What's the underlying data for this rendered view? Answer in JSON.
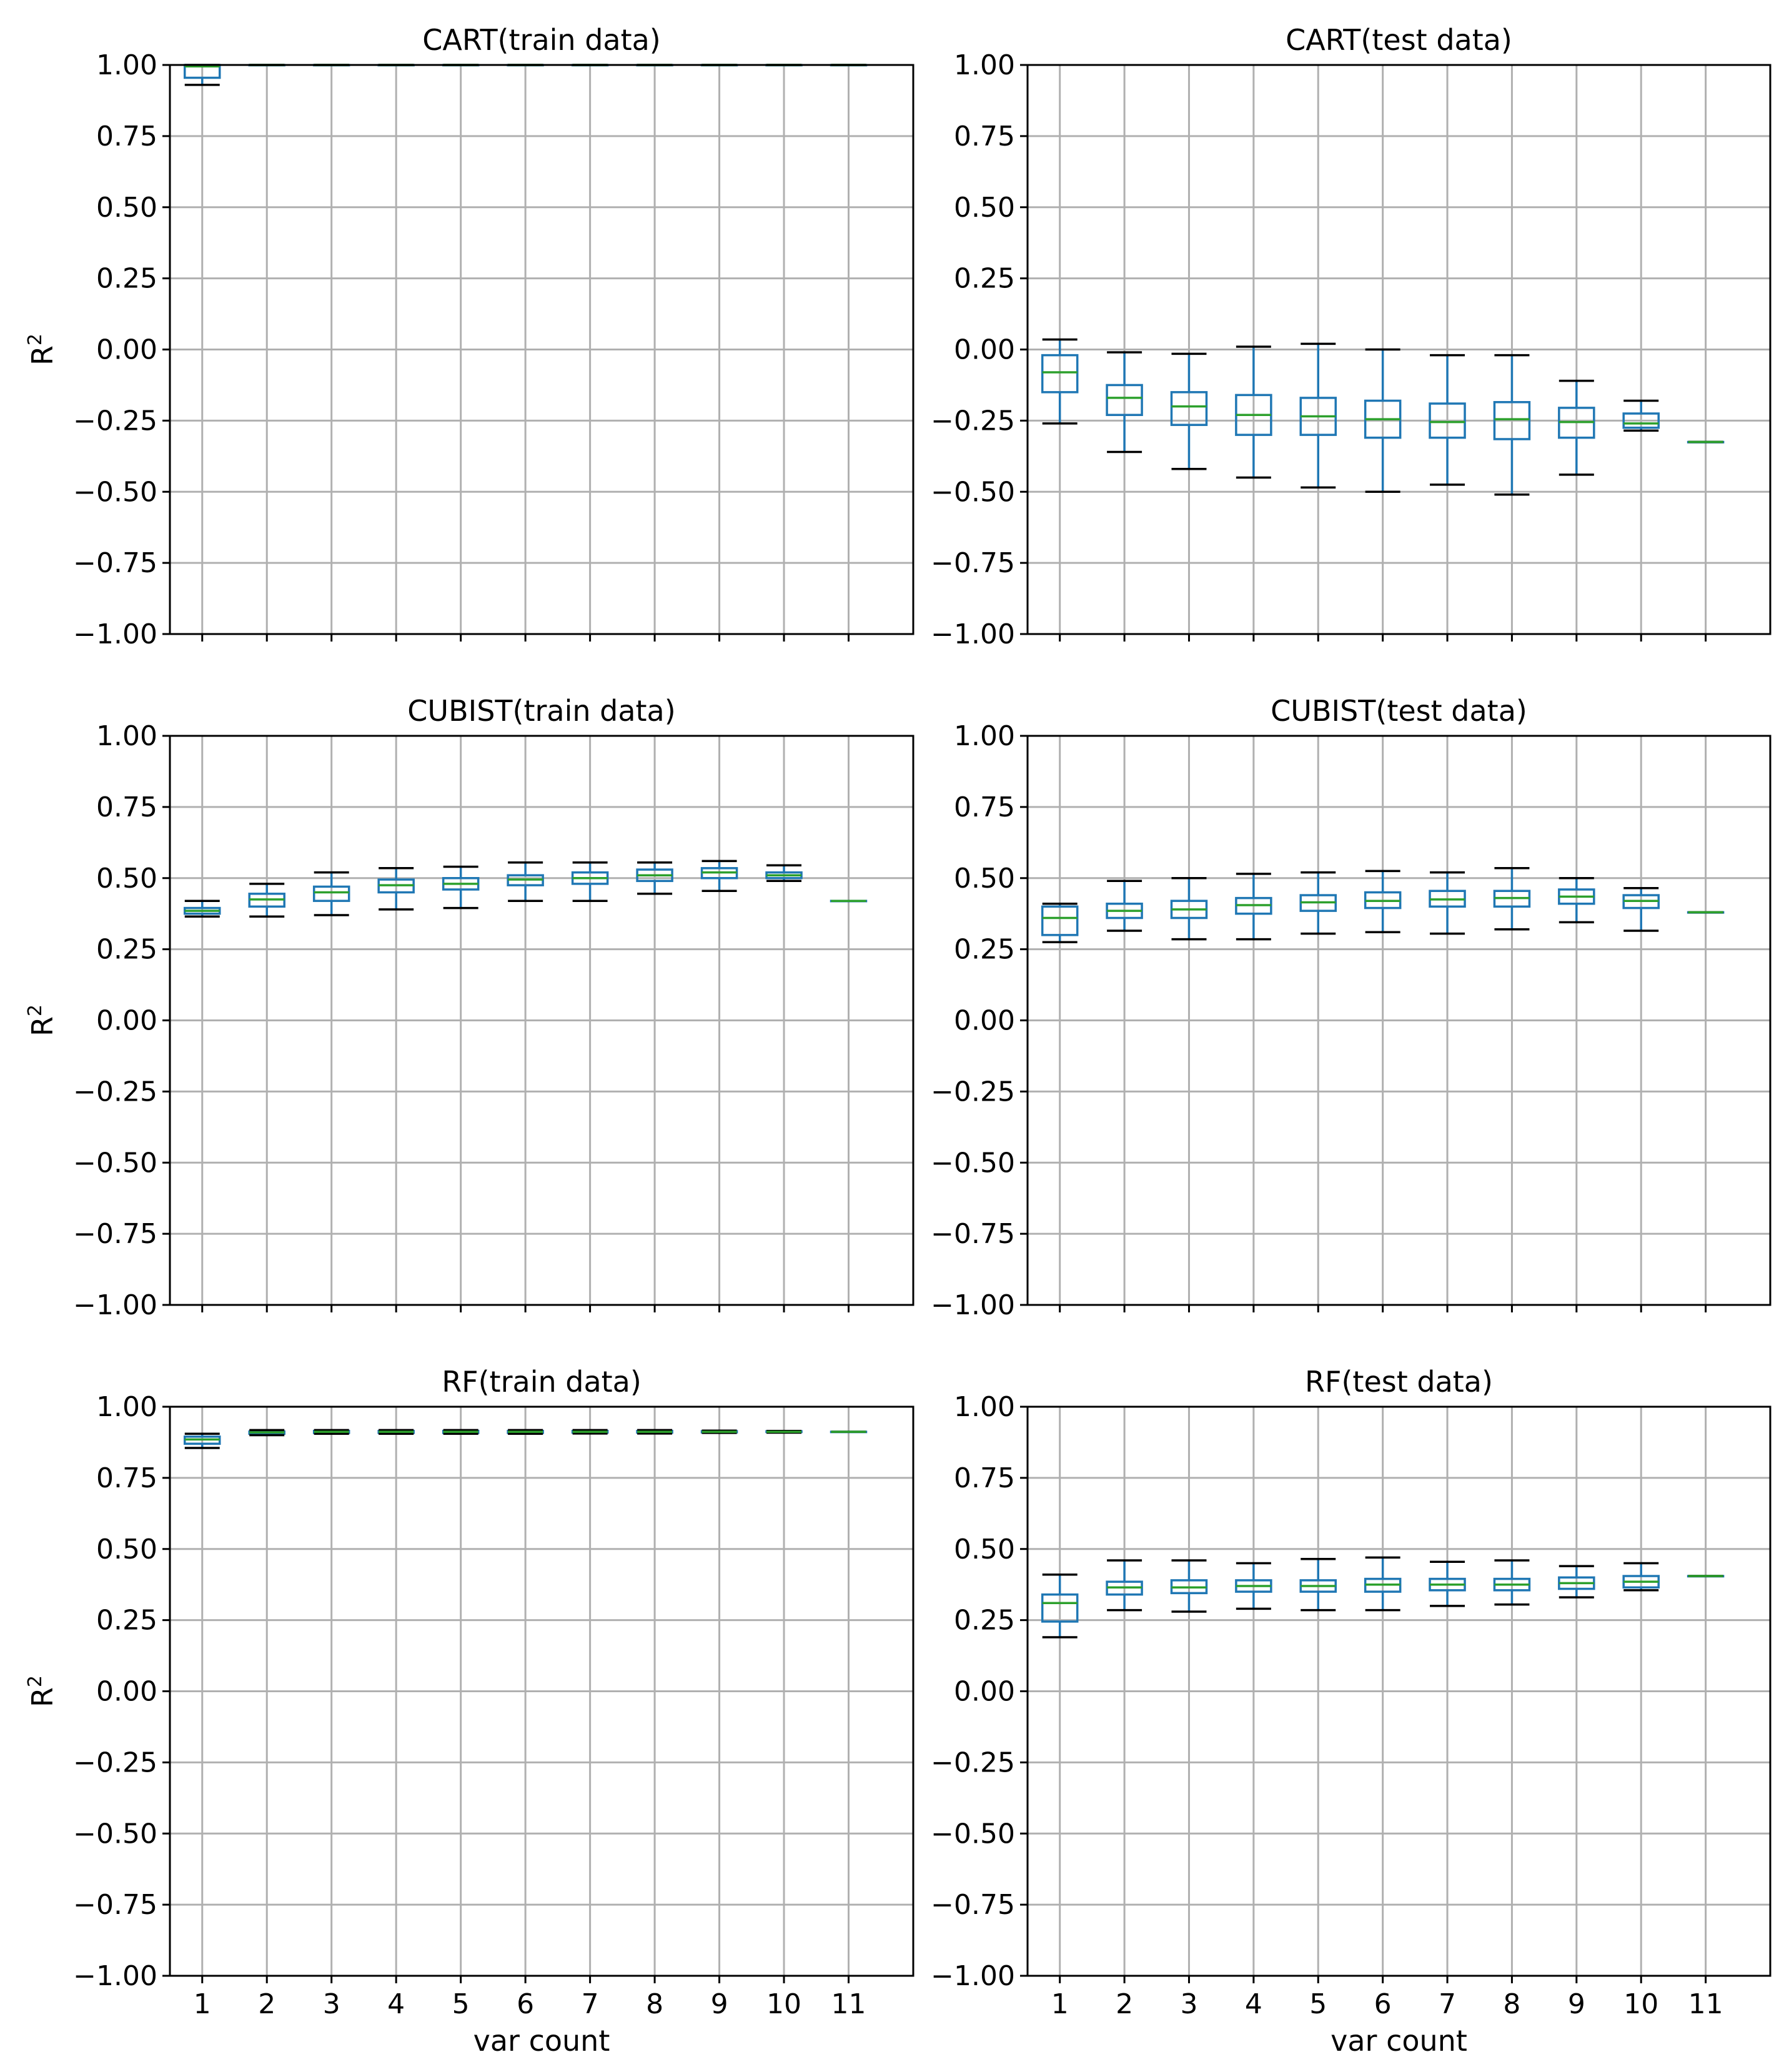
{
  "colors": {
    "box": "#1f77b4",
    "median": "#2ca02c",
    "cap": "#000000",
    "grid": "#b0b0b0"
  },
  "chart_data": [
    {
      "type": "box",
      "title": "CART(train data)",
      "xlabel": "",
      "ylabel": "R",
      "ylabel_sup": "2",
      "ylim": [
        -1.0,
        1.0
      ],
      "yticks": [
        1.0,
        0.75,
        0.5,
        0.25,
        0.0,
        -0.25,
        -0.5,
        -0.75,
        -1.0
      ],
      "ytick_labels": [
        "1.00",
        "0.75",
        "0.50",
        "0.25",
        "0.00",
        "−0.25",
        "−0.50",
        "−0.75",
        "−1.00"
      ],
      "categories": [
        "1",
        "2",
        "3",
        "4",
        "5",
        "6",
        "7",
        "8",
        "9",
        "10",
        "11"
      ],
      "show_xtick_labels": false,
      "boxes": [
        {
          "x": "1",
          "wlo": 0.93,
          "q1": 0.955,
          "med": 0.995,
          "q3": 1.0,
          "whi": 1.0
        },
        {
          "x": "2",
          "wlo": 1.0,
          "q1": 1.0,
          "med": 1.0,
          "q3": 1.0,
          "whi": 1.0
        },
        {
          "x": "3",
          "wlo": 1.0,
          "q1": 1.0,
          "med": 1.0,
          "q3": 1.0,
          "whi": 1.0
        },
        {
          "x": "4",
          "wlo": 1.0,
          "q1": 1.0,
          "med": 1.0,
          "q3": 1.0,
          "whi": 1.0
        },
        {
          "x": "5",
          "wlo": 1.0,
          "q1": 1.0,
          "med": 1.0,
          "q3": 1.0,
          "whi": 1.0
        },
        {
          "x": "6",
          "wlo": 1.0,
          "q1": 1.0,
          "med": 1.0,
          "q3": 1.0,
          "whi": 1.0
        },
        {
          "x": "7",
          "wlo": 1.0,
          "q1": 1.0,
          "med": 1.0,
          "q3": 1.0,
          "whi": 1.0
        },
        {
          "x": "8",
          "wlo": 1.0,
          "q1": 1.0,
          "med": 1.0,
          "q3": 1.0,
          "whi": 1.0
        },
        {
          "x": "9",
          "wlo": 1.0,
          "q1": 1.0,
          "med": 1.0,
          "q3": 1.0,
          "whi": 1.0
        },
        {
          "x": "10",
          "wlo": 1.0,
          "q1": 1.0,
          "med": 1.0,
          "q3": 1.0,
          "whi": 1.0
        },
        {
          "x": "11",
          "wlo": 1.0,
          "q1": 1.0,
          "med": 1.0,
          "q3": 1.0,
          "whi": 1.0
        }
      ]
    },
    {
      "type": "box",
      "title": "CART(test data)",
      "xlabel": "",
      "ylabel": "",
      "ylabel_sup": "",
      "ylim": [
        -1.0,
        1.0
      ],
      "yticks": [
        1.0,
        0.75,
        0.5,
        0.25,
        0.0,
        -0.25,
        -0.5,
        -0.75,
        -1.0
      ],
      "ytick_labels": [
        "1.00",
        "0.75",
        "0.50",
        "0.25",
        "0.00",
        "−0.25",
        "−0.50",
        "−0.75",
        "−1.00"
      ],
      "categories": [
        "1",
        "2",
        "3",
        "4",
        "5",
        "6",
        "7",
        "8",
        "9",
        "10",
        "11"
      ],
      "show_xtick_labels": false,
      "boxes": [
        {
          "x": "1",
          "wlo": -0.26,
          "q1": -0.15,
          "med": -0.08,
          "q3": -0.02,
          "whi": 0.035
        },
        {
          "x": "2",
          "wlo": -0.36,
          "q1": -0.23,
          "med": -0.17,
          "q3": -0.125,
          "whi": -0.01
        },
        {
          "x": "3",
          "wlo": -0.42,
          "q1": -0.265,
          "med": -0.2,
          "q3": -0.15,
          "whi": -0.015
        },
        {
          "x": "4",
          "wlo": -0.45,
          "q1": -0.3,
          "med": -0.23,
          "q3": -0.16,
          "whi": 0.01
        },
        {
          "x": "5",
          "wlo": -0.485,
          "q1": -0.3,
          "med": -0.235,
          "q3": -0.17,
          "whi": 0.02
        },
        {
          "x": "6",
          "wlo": -0.5,
          "q1": -0.31,
          "med": -0.245,
          "q3": -0.18,
          "whi": 0.0
        },
        {
          "x": "7",
          "wlo": -0.475,
          "q1": -0.31,
          "med": -0.255,
          "q3": -0.19,
          "whi": -0.02
        },
        {
          "x": "8",
          "wlo": -0.51,
          "q1": -0.315,
          "med": -0.245,
          "q3": -0.185,
          "whi": -0.02
        },
        {
          "x": "9",
          "wlo": -0.44,
          "q1": -0.31,
          "med": -0.255,
          "q3": -0.205,
          "whi": -0.11
        },
        {
          "x": "10",
          "wlo": -0.285,
          "q1": -0.275,
          "med": -0.26,
          "q3": -0.225,
          "whi": -0.18
        },
        {
          "x": "11",
          "wlo": -0.325,
          "q1": -0.325,
          "med": -0.325,
          "q3": -0.325,
          "whi": -0.325
        }
      ]
    },
    {
      "type": "box",
      "title": "CUBIST(train data)",
      "xlabel": "",
      "ylabel": "R",
      "ylabel_sup": "2",
      "ylim": [
        -1.0,
        1.0
      ],
      "yticks": [
        1.0,
        0.75,
        0.5,
        0.25,
        0.0,
        -0.25,
        -0.5,
        -0.75,
        -1.0
      ],
      "ytick_labels": [
        "1.00",
        "0.75",
        "0.50",
        "0.25",
        "0.00",
        "−0.25",
        "−0.50",
        "−0.75",
        "−1.00"
      ],
      "categories": [
        "1",
        "2",
        "3",
        "4",
        "5",
        "6",
        "7",
        "8",
        "9",
        "10",
        "11"
      ],
      "show_xtick_labels": false,
      "boxes": [
        {
          "x": "1",
          "wlo": 0.365,
          "q1": 0.375,
          "med": 0.385,
          "q3": 0.395,
          "whi": 0.42
        },
        {
          "x": "2",
          "wlo": 0.365,
          "q1": 0.4,
          "med": 0.425,
          "q3": 0.445,
          "whi": 0.48
        },
        {
          "x": "3",
          "wlo": 0.37,
          "q1": 0.42,
          "med": 0.45,
          "q3": 0.47,
          "whi": 0.52
        },
        {
          "x": "4",
          "wlo": 0.39,
          "q1": 0.45,
          "med": 0.475,
          "q3": 0.495,
          "whi": 0.535
        },
        {
          "x": "5",
          "wlo": 0.395,
          "q1": 0.46,
          "med": 0.48,
          "q3": 0.5,
          "whi": 0.54
        },
        {
          "x": "6",
          "wlo": 0.42,
          "q1": 0.475,
          "med": 0.495,
          "q3": 0.51,
          "whi": 0.555
        },
        {
          "x": "7",
          "wlo": 0.42,
          "q1": 0.48,
          "med": 0.5,
          "q3": 0.52,
          "whi": 0.555
        },
        {
          "x": "8",
          "wlo": 0.445,
          "q1": 0.49,
          "med": 0.51,
          "q3": 0.53,
          "whi": 0.555
        },
        {
          "x": "9",
          "wlo": 0.455,
          "q1": 0.5,
          "med": 0.52,
          "q3": 0.535,
          "whi": 0.56
        },
        {
          "x": "10",
          "wlo": 0.49,
          "q1": 0.5,
          "med": 0.51,
          "q3": 0.52,
          "whi": 0.545
        },
        {
          "x": "11",
          "wlo": 0.42,
          "q1": 0.42,
          "med": 0.42,
          "q3": 0.42,
          "whi": 0.42
        }
      ]
    },
    {
      "type": "box",
      "title": "CUBIST(test data)",
      "xlabel": "",
      "ylabel": "",
      "ylabel_sup": "",
      "ylim": [
        -1.0,
        1.0
      ],
      "yticks": [
        1.0,
        0.75,
        0.5,
        0.25,
        0.0,
        -0.25,
        -0.5,
        -0.75,
        -1.0
      ],
      "ytick_labels": [
        "1.00",
        "0.75",
        "0.50",
        "0.25",
        "0.00",
        "−0.25",
        "−0.50",
        "−0.75",
        "−1.00"
      ],
      "categories": [
        "1",
        "2",
        "3",
        "4",
        "5",
        "6",
        "7",
        "8",
        "9",
        "10",
        "11"
      ],
      "show_xtick_labels": false,
      "boxes": [
        {
          "x": "1",
          "wlo": 0.275,
          "q1": 0.3,
          "med": 0.36,
          "q3": 0.4,
          "whi": 0.41
        },
        {
          "x": "2",
          "wlo": 0.315,
          "q1": 0.36,
          "med": 0.385,
          "q3": 0.41,
          "whi": 0.49
        },
        {
          "x": "3",
          "wlo": 0.285,
          "q1": 0.36,
          "med": 0.39,
          "q3": 0.42,
          "whi": 0.5
        },
        {
          "x": "4",
          "wlo": 0.285,
          "q1": 0.375,
          "med": 0.405,
          "q3": 0.43,
          "whi": 0.515
        },
        {
          "x": "5",
          "wlo": 0.305,
          "q1": 0.385,
          "med": 0.415,
          "q3": 0.44,
          "whi": 0.52
        },
        {
          "x": "6",
          "wlo": 0.31,
          "q1": 0.395,
          "med": 0.42,
          "q3": 0.45,
          "whi": 0.525
        },
        {
          "x": "7",
          "wlo": 0.305,
          "q1": 0.4,
          "med": 0.425,
          "q3": 0.455,
          "whi": 0.52
        },
        {
          "x": "8",
          "wlo": 0.32,
          "q1": 0.4,
          "med": 0.43,
          "q3": 0.455,
          "whi": 0.535
        },
        {
          "x": "9",
          "wlo": 0.345,
          "q1": 0.41,
          "med": 0.435,
          "q3": 0.46,
          "whi": 0.5
        },
        {
          "x": "10",
          "wlo": 0.315,
          "q1": 0.395,
          "med": 0.42,
          "q3": 0.44,
          "whi": 0.465
        },
        {
          "x": "11",
          "wlo": 0.38,
          "q1": 0.38,
          "med": 0.38,
          "q3": 0.38,
          "whi": 0.38
        }
      ]
    },
    {
      "type": "box",
      "title": "RF(train data)",
      "xlabel": "var count",
      "ylabel": "R",
      "ylabel_sup": "2",
      "ylim": [
        -1.0,
        1.0
      ],
      "yticks": [
        1.0,
        0.75,
        0.5,
        0.25,
        0.0,
        -0.25,
        -0.5,
        -0.75,
        -1.0
      ],
      "ytick_labels": [
        "1.00",
        "0.75",
        "0.50",
        "0.25",
        "0.00",
        "−0.25",
        "−0.50",
        "−0.75",
        "−1.00"
      ],
      "categories": [
        "1",
        "2",
        "3",
        "4",
        "5",
        "6",
        "7",
        "8",
        "9",
        "10",
        "11"
      ],
      "show_xtick_labels": true,
      "boxes": [
        {
          "x": "1",
          "wlo": 0.855,
          "q1": 0.87,
          "med": 0.885,
          "q3": 0.895,
          "whi": 0.905
        },
        {
          "x": "2",
          "wlo": 0.9,
          "q1": 0.905,
          "med": 0.91,
          "q3": 0.913,
          "whi": 0.918
        },
        {
          "x": "3",
          "wlo": 0.905,
          "q1": 0.908,
          "med": 0.912,
          "q3": 0.915,
          "whi": 0.918
        },
        {
          "x": "4",
          "wlo": 0.905,
          "q1": 0.908,
          "med": 0.912,
          "q3": 0.915,
          "whi": 0.918
        },
        {
          "x": "5",
          "wlo": 0.905,
          "q1": 0.908,
          "med": 0.912,
          "q3": 0.915,
          "whi": 0.918
        },
        {
          "x": "6",
          "wlo": 0.905,
          "q1": 0.908,
          "med": 0.912,
          "q3": 0.915,
          "whi": 0.918
        },
        {
          "x": "7",
          "wlo": 0.906,
          "q1": 0.909,
          "med": 0.912,
          "q3": 0.915,
          "whi": 0.918
        },
        {
          "x": "8",
          "wlo": 0.906,
          "q1": 0.909,
          "med": 0.912,
          "q3": 0.915,
          "whi": 0.918
        },
        {
          "x": "9",
          "wlo": 0.908,
          "q1": 0.91,
          "med": 0.912,
          "q3": 0.914,
          "whi": 0.916
        },
        {
          "x": "10",
          "wlo": 0.909,
          "q1": 0.911,
          "med": 0.912,
          "q3": 0.914,
          "whi": 0.915
        },
        {
          "x": "11",
          "wlo": 0.912,
          "q1": 0.912,
          "med": 0.912,
          "q3": 0.912,
          "whi": 0.912
        }
      ]
    },
    {
      "type": "box",
      "title": "RF(test data)",
      "xlabel": "var count",
      "ylabel": "",
      "ylabel_sup": "",
      "ylim": [
        -1.0,
        1.0
      ],
      "yticks": [
        1.0,
        0.75,
        0.5,
        0.25,
        0.0,
        -0.25,
        -0.5,
        -0.75,
        -1.0
      ],
      "ytick_labels": [
        "1.00",
        "0.75",
        "0.50",
        "0.25",
        "0.00",
        "−0.25",
        "−0.50",
        "−0.75",
        "−1.00"
      ],
      "categories": [
        "1",
        "2",
        "3",
        "4",
        "5",
        "6",
        "7",
        "8",
        "9",
        "10",
        "11"
      ],
      "show_xtick_labels": true,
      "boxes": [
        {
          "x": "1",
          "wlo": 0.19,
          "q1": 0.245,
          "med": 0.31,
          "q3": 0.34,
          "whi": 0.41
        },
        {
          "x": "2",
          "wlo": 0.285,
          "q1": 0.34,
          "med": 0.365,
          "q3": 0.385,
          "whi": 0.46
        },
        {
          "x": "3",
          "wlo": 0.28,
          "q1": 0.345,
          "med": 0.365,
          "q3": 0.39,
          "whi": 0.46
        },
        {
          "x": "4",
          "wlo": 0.29,
          "q1": 0.35,
          "med": 0.37,
          "q3": 0.39,
          "whi": 0.45
        },
        {
          "x": "5",
          "wlo": 0.285,
          "q1": 0.35,
          "med": 0.37,
          "q3": 0.39,
          "whi": 0.465
        },
        {
          "x": "6",
          "wlo": 0.285,
          "q1": 0.35,
          "med": 0.375,
          "q3": 0.395,
          "whi": 0.47
        },
        {
          "x": "7",
          "wlo": 0.3,
          "q1": 0.355,
          "med": 0.375,
          "q3": 0.395,
          "whi": 0.455
        },
        {
          "x": "8",
          "wlo": 0.305,
          "q1": 0.355,
          "med": 0.375,
          "q3": 0.395,
          "whi": 0.46
        },
        {
          "x": "9",
          "wlo": 0.33,
          "q1": 0.36,
          "med": 0.38,
          "q3": 0.4,
          "whi": 0.44
        },
        {
          "x": "10",
          "wlo": 0.355,
          "q1": 0.365,
          "med": 0.385,
          "q3": 0.405,
          "whi": 0.45
        },
        {
          "x": "11",
          "wlo": 0.405,
          "q1": 0.405,
          "med": 0.405,
          "q3": 0.405,
          "whi": 0.405
        }
      ]
    }
  ]
}
